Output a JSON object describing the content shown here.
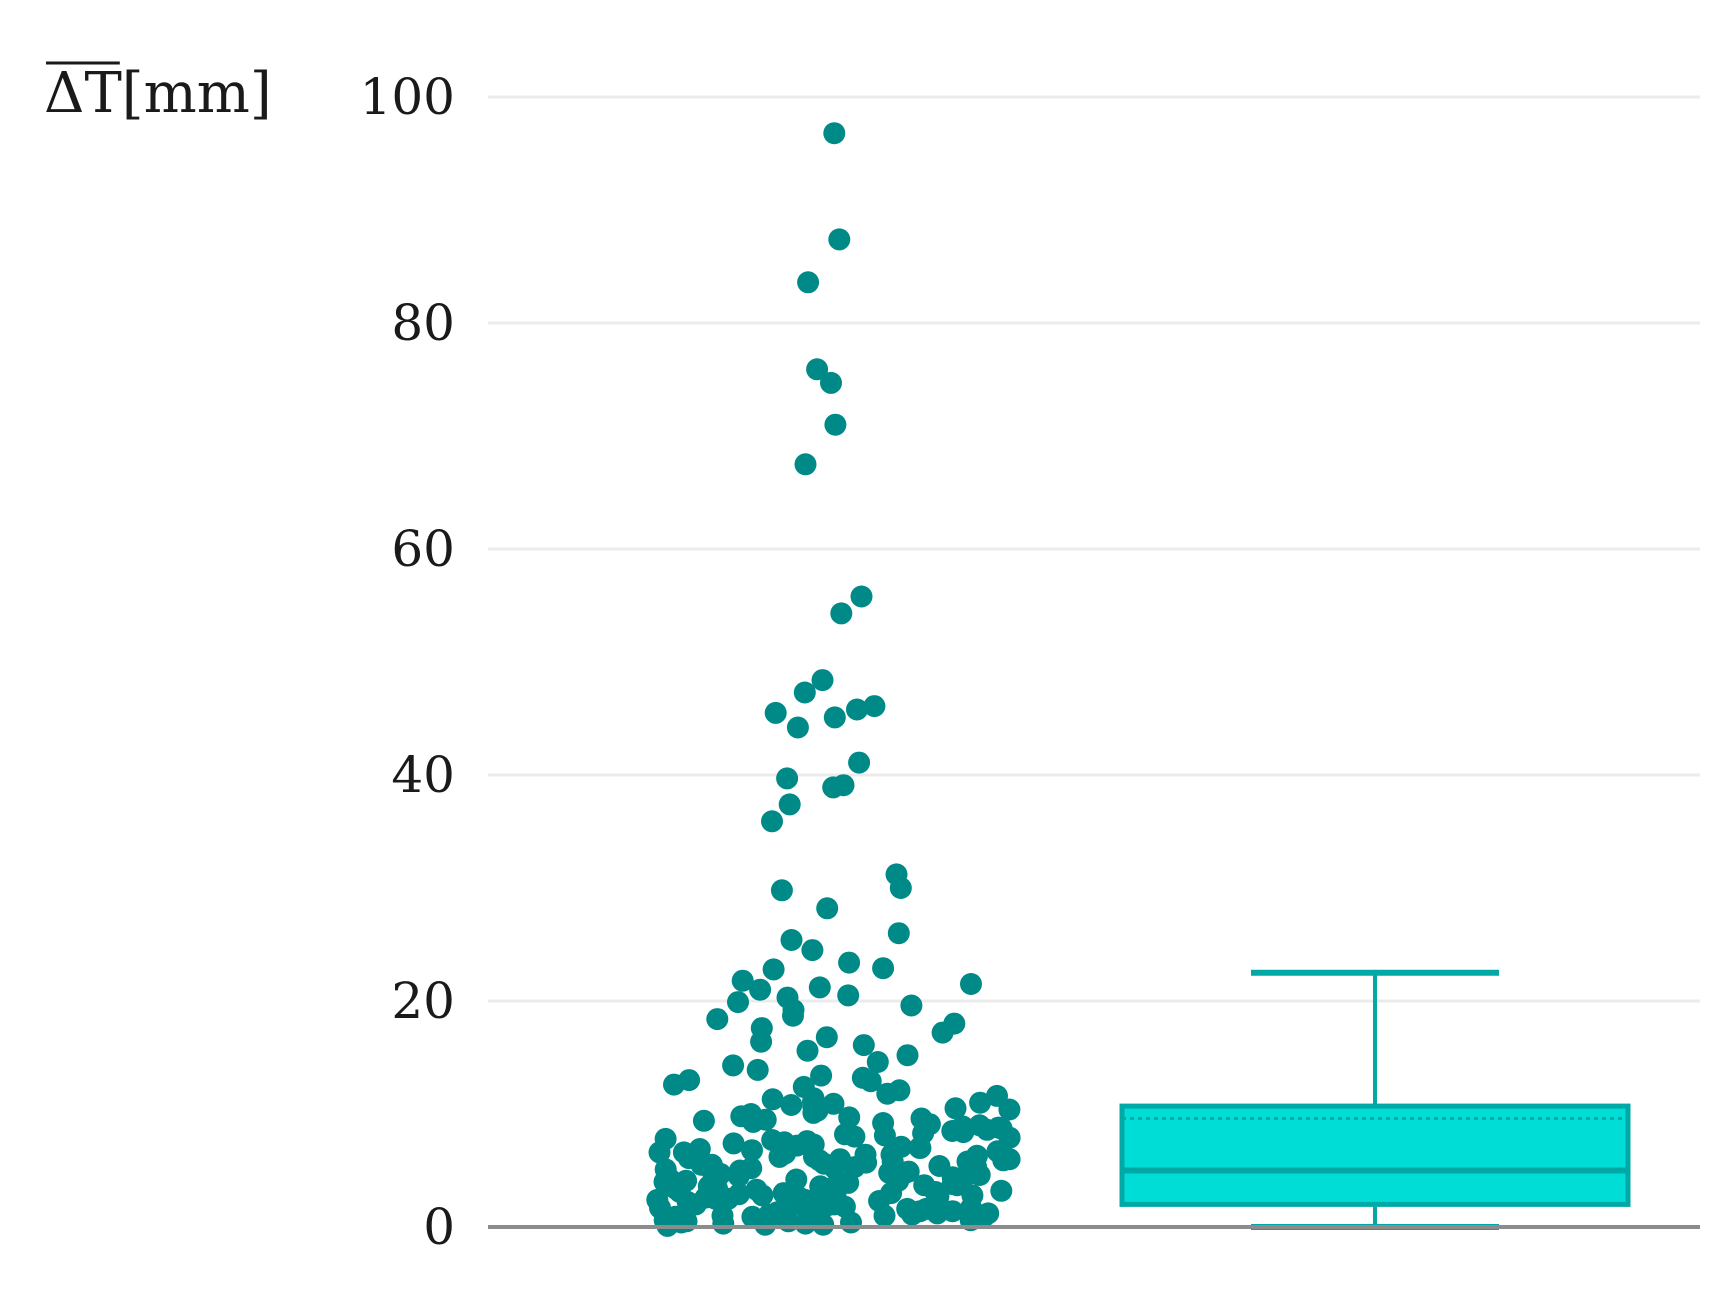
{
  "chart_data": {
    "type": "scatter",
    "ylabel_symbol": "ΔT",
    "ylabel_unit": "[mm]",
    "ylim": [
      0,
      100
    ],
    "yticks": [
      "0",
      "20",
      "40",
      "60",
      "80",
      "100"
    ],
    "grid": true,
    "colors": {
      "points": "#008a87",
      "box_fill": "#00dcd6",
      "box_stroke": "#00a9a6",
      "grid": "#ebebeb",
      "axis": "#8c8c8c"
    },
    "strip": {
      "name": "",
      "values": [
        96.8,
        87.4,
        83.6,
        75.9,
        74.7,
        71.0,
        67.5,
        55.8,
        54.3,
        48.4,
        47.3,
        46.1,
        45.8,
        45.5,
        45.1,
        44.2,
        41.1,
        39.7,
        39.1,
        38.9,
        37.4,
        35.9,
        31.2,
        30.0,
        29.8,
        28.2,
        26.0,
        25.4,
        24.5,
        23.4,
        22.9,
        22.8,
        21.8,
        21.5,
        21.2,
        21.0,
        20.5,
        20.3,
        19.9,
        19.6,
        19.2,
        18.7,
        18.4,
        18.0,
        17.6,
        17.2,
        16.8,
        16.4,
        16.1,
        15.6,
        15.2,
        14.6,
        14.3,
        13.9,
        13.4,
        13.0,
        12.6,
        12.4,
        12.1,
        11.8,
        11.6,
        11.3,
        11.1,
        10.9,
        10.7,
        10.5,
        10.3,
        10.1,
        10.0,
        9.8,
        9.6,
        9.4,
        9.3,
        9.1,
        8.9,
        8.7,
        8.6,
        8.4,
        8.3,
        8.1,
        8.0,
        7.8,
        7.7,
        7.5,
        7.4,
        7.2,
        7.1,
        7.0,
        6.8,
        6.7,
        6.6,
        6.5,
        6.4,
        6.2,
        6.1,
        6.0,
        5.9,
        5.8,
        5.7,
        5.6,
        5.5,
        5.4,
        5.3,
        5.2,
        5.1,
        5.0,
        4.9,
        4.8,
        4.7,
        4.6,
        4.5,
        4.4,
        4.3,
        4.2,
        4.1,
        4.0,
        3.9,
        3.8,
        3.7,
        3.6,
        3.5,
        3.4,
        3.3,
        3.2,
        3.1,
        3.0,
        2.9,
        2.8,
        2.7,
        2.6,
        2.5,
        2.4,
        2.3,
        2.2,
        2.1,
        2.0,
        1.9,
        1.8,
        1.7,
        1.6,
        1.5,
        1.4,
        1.3,
        1.2,
        1.1,
        1.0,
        0.9,
        0.8,
        0.7,
        0.6,
        0.5,
        0.4,
        0.3,
        0.2,
        0.1,
        12.9,
        11.4,
        10.8,
        9.7,
        9.0,
        8.2,
        7.6,
        6.9,
        6.3,
        5.8,
        5.2,
        4.6,
        4.1,
        3.6,
        3.2,
        2.8,
        2.4,
        2.0,
        1.6,
        1.2,
        0.8,
        0.4,
        10.4,
        9.2,
        8.5,
        7.3,
        6.6,
        5.9,
        5.3,
        4.8,
        4.2,
        3.7,
        3.1,
        2.6,
        2.1,
        1.7,
        1.3,
        0.9,
        0.5,
        0.2,
        7.9,
        6.4,
        5.5,
        4.4,
        3.4,
        2.5,
        1.8,
        1.1,
        0.6,
        8.8,
        6.0,
        4.0,
        2.2,
        1.0,
        3.0,
        5.0,
        7.0,
        9.5,
        11.0,
        13.2,
        2.7,
        1.4,
        4.7,
        6.2,
        0.3
      ]
    },
    "box": {
      "name": "",
      "whisker_low": 0.0,
      "q1": 2.0,
      "median": 5.0,
      "mean": 9.6,
      "q3": 10.7,
      "whisker_high": 22.5
    }
  }
}
